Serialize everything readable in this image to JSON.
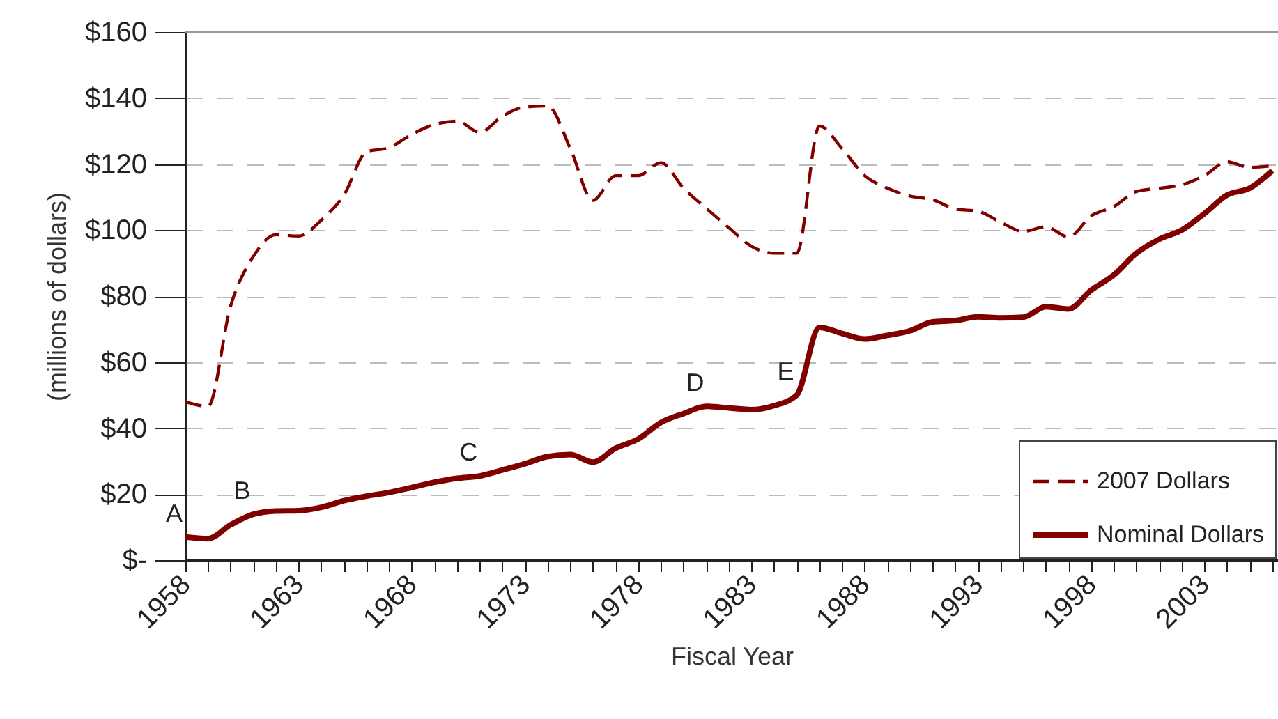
{
  "chart_data": {
    "type": "line",
    "xlabel": "Fiscal Year",
    "ylabel": "(millions of dollars)",
    "x": [
      1958,
      1959,
      1960,
      1961,
      1962,
      1963,
      1964,
      1965,
      1966,
      1967,
      1968,
      1969,
      1970,
      1971,
      1972,
      1973,
      1974,
      1975,
      1976,
      1977,
      1978,
      1979,
      1980,
      1981,
      1982,
      1983,
      1984,
      1985,
      1986,
      1987,
      1988,
      1989,
      1990,
      1991,
      1992,
      1993,
      1994,
      1995,
      1996,
      1997,
      1998,
      1999,
      2000,
      2001,
      2002,
      2003,
      2004,
      2005,
      2006
    ],
    "series": [
      {
        "name": "2007 Dollars",
        "color": "#800000",
        "line_style": "dashed",
        "values": [
          48,
          46.6,
          77,
          92,
          98.6,
          98.2,
          103,
          110.6,
          123.7,
          125,
          129,
          132,
          133,
          129.6,
          134.5,
          137.3,
          137.6,
          124.7,
          109,
          116.5,
          116.5,
          120.4,
          112.7,
          106.6,
          100.7,
          95.1,
          93,
          93,
          131.5,
          124.7,
          116.5,
          112.7,
          110.3,
          109.2,
          106.4,
          105.7,
          102.4,
          99.6,
          101,
          97.9,
          104.3,
          107.1,
          111.7,
          112.7,
          113.7,
          116.5,
          120.7,
          119,
          119.5
        ]
      },
      {
        "name": "Nominal Dollars",
        "color": "#800000",
        "line_style": "solid",
        "values": [
          7,
          6.5,
          10.7,
          13.9,
          14.9,
          15,
          16,
          18,
          19.4,
          20.5,
          22,
          23.6,
          24.8,
          25.5,
          27.3,
          29.2,
          31.4,
          32,
          29.7,
          33.9,
          36.7,
          41.7,
          44.4,
          46.6,
          46.1,
          45.6,
          46.8,
          50,
          70.5,
          68.7,
          67,
          68.1,
          69.5,
          72.2,
          72.6,
          73.7,
          73.4,
          73.6,
          76.8,
          76.1,
          81.8,
          86.4,
          93,
          97.2,
          100,
          105,
          110.6,
          112.7,
          118
        ]
      }
    ],
    "annotations": [
      {
        "text": "A",
        "x": 1958,
        "y": 7
      },
      {
        "text": "B",
        "x": 1961,
        "y": 13.9
      },
      {
        "text": "C",
        "x": 1971,
        "y": 25.5
      },
      {
        "text": "D",
        "x": 1981,
        "y": 46.6
      },
      {
        "text": "E",
        "x": 1985,
        "y": 50
      }
    ],
    "xlim": [
      1958,
      2006.25
    ],
    "xticks": [
      1958,
      {
        "value": 1959,
        "label": null
      },
      {
        "value": 1960,
        "label": null
      },
      {
        "value": 1961,
        "label": null
      },
      {
        "value": 1962,
        "label": null
      },
      1963,
      {
        "value": 1964,
        "label": null
      },
      {
        "value": 1965,
        "label": null
      },
      {
        "value": 1966,
        "label": null
      },
      {
        "value": 1967,
        "label": null
      },
      1968,
      {
        "value": 1969,
        "label": null
      },
      {
        "value": 1970,
        "label": null
      },
      {
        "value": 1971,
        "label": null
      },
      {
        "value": 1972,
        "label": null
      },
      1973,
      {
        "value": 1974,
        "label": null
      },
      {
        "value": 1975,
        "label": null
      },
      {
        "value": 1976,
        "label": null
      },
      {
        "value": 1977,
        "label": null
      },
      1978,
      {
        "value": 1979,
        "label": null
      },
      {
        "value": 1980,
        "label": null
      },
      {
        "value": 1981,
        "label": null
      },
      {
        "value": 1982,
        "label": null
      },
      1983,
      {
        "value": 1984,
        "label": null
      },
      {
        "value": 1985,
        "label": null
      },
      {
        "value": 1986,
        "label": null
      },
      {
        "value": 1987,
        "label": null
      },
      1988,
      {
        "value": 1989,
        "label": null
      },
      {
        "value": 1990,
        "label": null
      },
      {
        "value": 1991,
        "label": null
      },
      {
        "value": 1992,
        "label": null
      },
      1993,
      {
        "value": 1994,
        "label": null
      },
      {
        "value": 1995,
        "label": null
      },
      {
        "value": 1996,
        "label": null
      },
      {
        "value": 1997,
        "label": null
      },
      1998,
      {
        "value": 1999,
        "label": null
      },
      {
        "value": 2000,
        "label": null
      },
      {
        "value": 2001,
        "label": null
      },
      {
        "value": 2002,
        "label": null
      },
      2003,
      {
        "value": 2004,
        "label": null
      },
      {
        "value": 2005,
        "label": null
      },
      {
        "value": 2006,
        "label": null
      }
    ],
    "ylim": [
      0,
      160
    ],
    "yticks": [
      {
        "value": 0,
        "label": "$-"
      },
      {
        "value": 20,
        "label": "$20"
      },
      {
        "value": 40,
        "label": "$40"
      },
      {
        "value": 60,
        "label": "$60"
      },
      {
        "value": 80,
        "label": "$80"
      },
      {
        "value": 100,
        "label": "$100"
      },
      {
        "value": 120,
        "label": "$120"
      },
      {
        "value": 140,
        "label": "$140"
      },
      {
        "value": 160,
        "label": "$160"
      }
    ],
    "grid": "y",
    "legend": "bottom right",
    "marker": "none"
  }
}
